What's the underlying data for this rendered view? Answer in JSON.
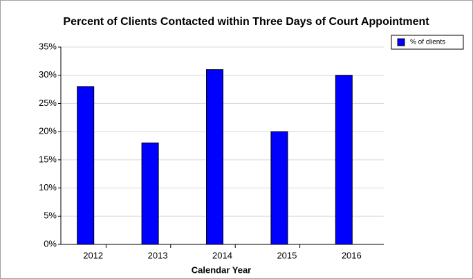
{
  "chart_data": {
    "type": "bar",
    "title": "Percent of Clients Contacted within Three Days of Court Appointment",
    "x_label": "Calendar Year",
    "categories": [
      "2012",
      "2013",
      "2014",
      "2015",
      "2016"
    ],
    "series": [
      {
        "name": "% of clients",
        "color": "#0000ff",
        "values": [
          28,
          18,
          31,
          20,
          30
        ]
      }
    ],
    "ylim": [
      0,
      35
    ],
    "yticks": [
      {
        "value": 0,
        "label": "0%"
      },
      {
        "value": 5,
        "label": "5%"
      },
      {
        "value": 10,
        "label": "10%"
      },
      {
        "value": 15,
        "label": "15%"
      },
      {
        "value": 20,
        "label": "20%"
      },
      {
        "value": 25,
        "label": "25%"
      },
      {
        "value": 30,
        "label": "30%"
      },
      {
        "value": 35,
        "label": "35%"
      }
    ],
    "grid": true,
    "legend": "top-right"
  }
}
